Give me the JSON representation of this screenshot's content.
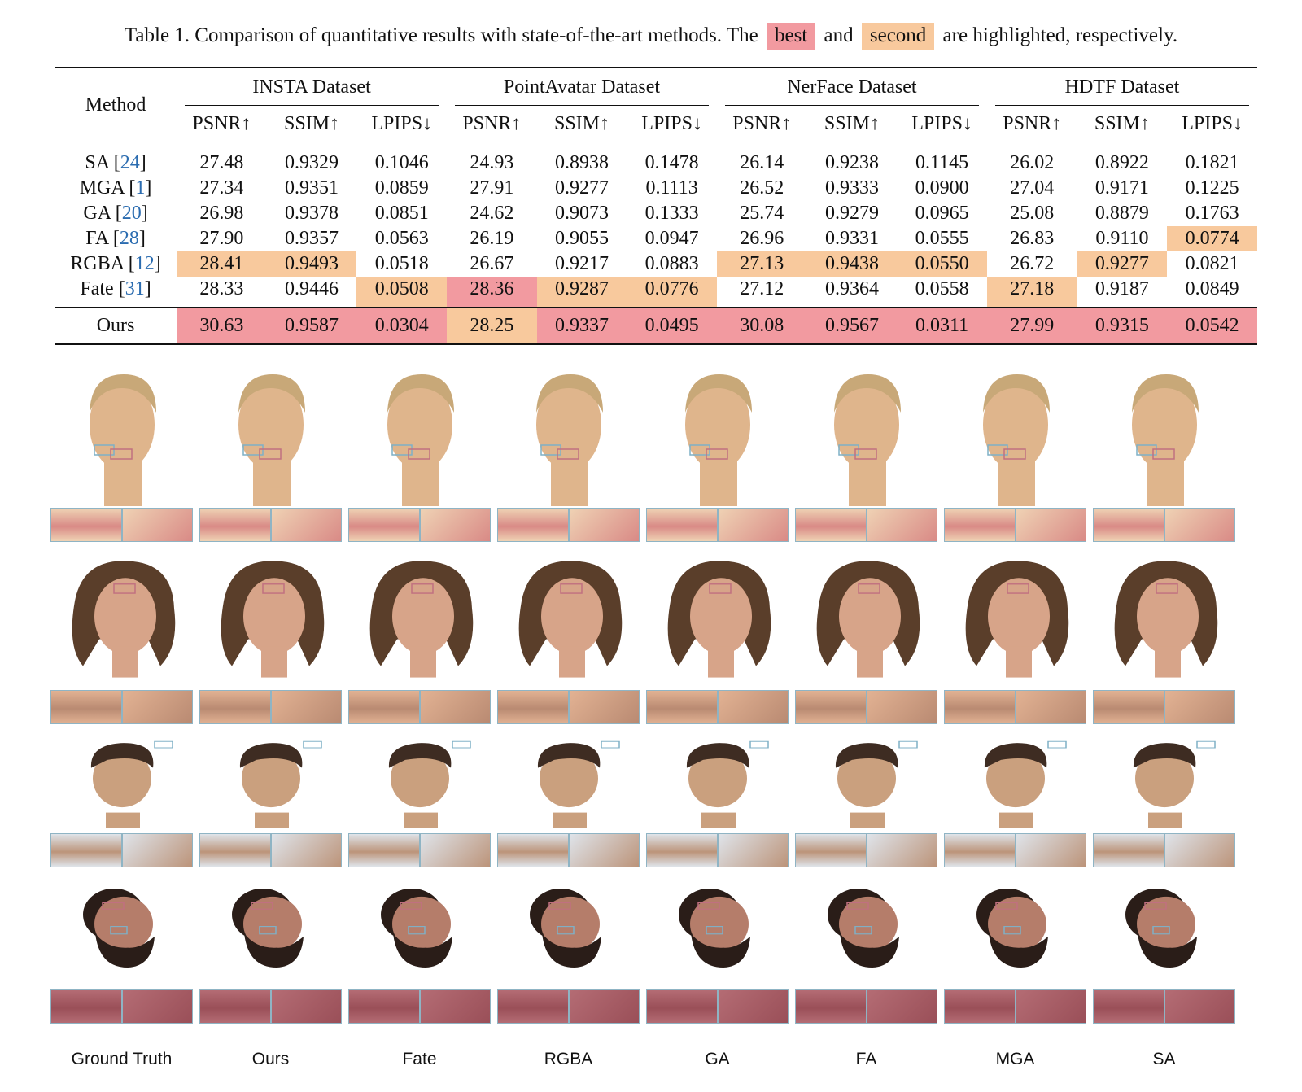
{
  "caption": {
    "prefix": "Table 1. Comparison of quantitative results with state-of-the-art methods. The",
    "best": "best",
    "and": "and",
    "second": "second",
    "suffix": "are highlighted, respectively."
  },
  "table": {
    "method_header": "Method",
    "datasets": [
      "INSTA Dataset",
      "PointAvatar Dataset",
      "NerFace Dataset",
      "HDTF Dataset"
    ],
    "metrics": [
      "PSNR↑",
      "SSIM↑",
      "LPIPS↓"
    ],
    "rows": [
      {
        "name": "SA",
        "ref": "24",
        "values": [
          "27.48",
          "0.9329",
          "0.1046",
          "24.93",
          "0.8938",
          "0.1478",
          "26.14",
          "0.9238",
          "0.1145",
          "26.02",
          "0.8922",
          "0.1821"
        ],
        "hl": [
          "",
          "",
          "",
          "",
          "",
          "",
          "",
          "",
          "",
          "",
          "",
          ""
        ]
      },
      {
        "name": "MGA",
        "ref": "1",
        "values": [
          "27.34",
          "0.9351",
          "0.0859",
          "27.91",
          "0.9277",
          "0.1113",
          "26.52",
          "0.9333",
          "0.0900",
          "27.04",
          "0.9171",
          "0.1225"
        ],
        "hl": [
          "",
          "",
          "",
          "",
          "",
          "",
          "",
          "",
          "",
          "",
          "",
          ""
        ]
      },
      {
        "name": "GA",
        "ref": "20",
        "values": [
          "26.98",
          "0.9378",
          "0.0851",
          "24.62",
          "0.9073",
          "0.1333",
          "25.74",
          "0.9279",
          "0.0965",
          "25.08",
          "0.8879",
          "0.1763"
        ],
        "hl": [
          "",
          "",
          "",
          "",
          "",
          "",
          "",
          "",
          "",
          "",
          "",
          ""
        ]
      },
      {
        "name": "FA",
        "ref": "28",
        "values": [
          "27.90",
          "0.9357",
          "0.0563",
          "26.19",
          "0.9055",
          "0.0947",
          "26.96",
          "0.9331",
          "0.0555",
          "26.83",
          "0.9110",
          "0.0774"
        ],
        "hl": [
          "",
          "",
          "",
          "",
          "",
          "",
          "",
          "",
          "",
          "",
          "",
          "second"
        ]
      },
      {
        "name": "RGBA",
        "ref": "12",
        "values": [
          "28.41",
          "0.9493",
          "0.0518",
          "26.67",
          "0.9217",
          "0.0883",
          "27.13",
          "0.9438",
          "0.0550",
          "26.72",
          "0.9277",
          "0.0821"
        ],
        "hl": [
          "second",
          "second",
          "",
          "",
          "",
          "",
          "second",
          "second",
          "second",
          "",
          "second",
          ""
        ]
      },
      {
        "name": "Fate",
        "ref": "31",
        "values": [
          "28.33",
          "0.9446",
          "0.0508",
          "28.36",
          "0.9287",
          "0.0776",
          "27.12",
          "0.9364",
          "0.0558",
          "27.18",
          "0.9187",
          "0.0849"
        ],
        "hl": [
          "",
          "",
          "second",
          "best",
          "second",
          "second",
          "",
          "",
          "",
          "second",
          "",
          ""
        ]
      }
    ],
    "ours": {
      "name": "Ours",
      "values": [
        "30.63",
        "0.9587",
        "0.0304",
        "28.25",
        "0.9337",
        "0.0495",
        "30.08",
        "0.9567",
        "0.0311",
        "27.99",
        "0.9315",
        "0.0542"
      ],
      "hl": [
        "best",
        "best",
        "best",
        "second",
        "best",
        "best",
        "best",
        "best",
        "best",
        "best",
        "best",
        "best"
      ]
    }
  },
  "figure": {
    "column_labels": [
      "Ground Truth",
      "Ours",
      "Fate",
      "RGBA",
      "GA",
      "FA",
      "MGA",
      "SA"
    ],
    "subjects": [
      {
        "id": "blond-man",
        "skin": "#dfb58c",
        "hair": "#c8a878",
        "hair_style": "slick",
        "crop_left": "#d98a86",
        "crop_right": "#efd2b4"
      },
      {
        "id": "bob-woman",
        "skin": "#d7a489",
        "hair": "#5a3e2a",
        "hair_style": "bob",
        "crop_left": "#b98a72",
        "crop_right": "#e2b293"
      },
      {
        "id": "dark-hair-man",
        "skin": "#caa07e",
        "hair": "#3e2c22",
        "hair_style": "side",
        "crop_left": "#bc947a",
        "crop_right": "#dfe4ea"
      },
      {
        "id": "bearded-man",
        "skin": "#b57d6a",
        "hair": "#2a1d18",
        "hair_style": "beard",
        "crop_left": "#9a4f58",
        "crop_right": "#b46c74"
      }
    ],
    "box_color": "#7fb0c6",
    "box_color_2": "#c07080"
  }
}
